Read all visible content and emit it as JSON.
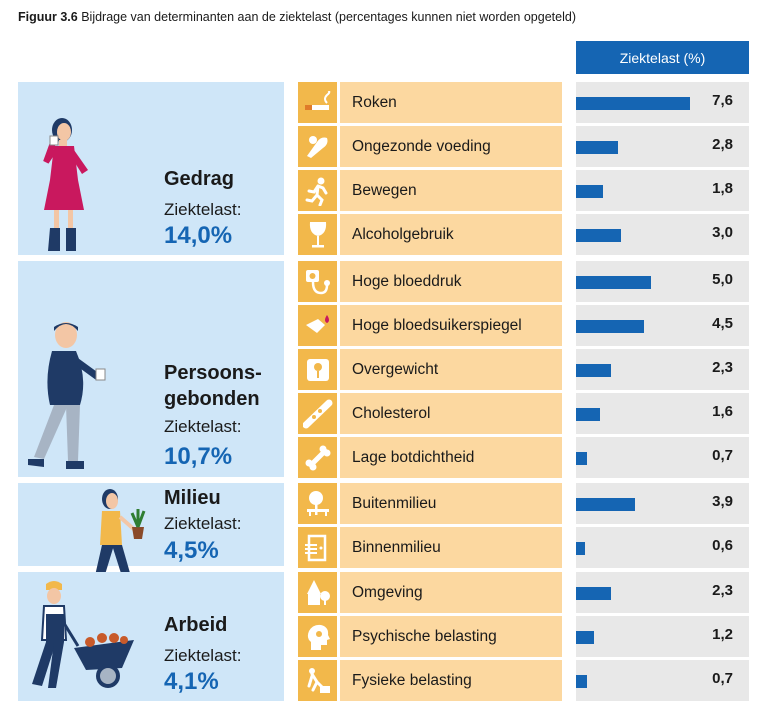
{
  "caption": {
    "prefix": "Figuur 3.6",
    "text": " Bijdrage van determinanten aan de ziektelast (percentages kunnen niet worden opgeteld)"
  },
  "header": {
    "column_label": "Ziektelast (%)"
  },
  "groups": [
    {
      "name_line1": "Gedrag",
      "name_line2": "",
      "label": "Ziektelast:",
      "value": "14,0%"
    },
    {
      "name_line1": "Persoons-",
      "name_line2": "gebonden",
      "label": "Ziektelast:",
      "value": "10,7%"
    },
    {
      "name_line1": "Milieu",
      "name_line2": "",
      "label": "Ziektelast:",
      "value": "4,5%"
    },
    {
      "name_line1": "Arbeid",
      "name_line2": "",
      "label": "Ziektelast:",
      "value": "4,1%"
    }
  ],
  "rows": [
    {
      "label": "Roken",
      "value": 7.6,
      "value_text": "7,6",
      "icon": "cigarette-icon"
    },
    {
      "label": "Ongezonde voeding",
      "value": 2.8,
      "value_text": "2,8",
      "icon": "food-icon"
    },
    {
      "label": "Bewegen",
      "value": 1.8,
      "value_text": "1,8",
      "icon": "running-icon"
    },
    {
      "label": "Alcoholgebruik",
      "value": 3.0,
      "value_text": "3,0",
      "icon": "wine-glass-icon"
    },
    {
      "label": "Hoge bloeddruk",
      "value": 5.0,
      "value_text": "5,0",
      "icon": "blood-pressure-icon"
    },
    {
      "label": "Hoge bloedsuikerspiegel",
      "value": 4.5,
      "value_text": "4,5",
      "icon": "blood-drop-icon"
    },
    {
      "label": "Overgewicht",
      "value": 2.3,
      "value_text": "2,3",
      "icon": "scale-icon"
    },
    {
      "label": "Cholesterol",
      "value": 1.6,
      "value_text": "1,6",
      "icon": "artery-icon"
    },
    {
      "label": "Lage botdichtheid",
      "value": 0.7,
      "value_text": "0,7",
      "icon": "bone-icon"
    },
    {
      "label": "Buitenmilieu",
      "value": 3.9,
      "value_text": "3,9",
      "icon": "tree-bench-icon"
    },
    {
      "label": "Binnenmilieu",
      "value": 0.6,
      "value_text": "0,6",
      "icon": "door-icon"
    },
    {
      "label": "Omgeving",
      "value": 2.3,
      "value_text": "2,3",
      "icon": "house-tree-icon"
    },
    {
      "label": "Psychische belasting",
      "value": 1.2,
      "value_text": "1,2",
      "icon": "head-icon"
    },
    {
      "label": "Fysieke belasting",
      "value": 0.7,
      "value_text": "0,7",
      "icon": "lifting-icon"
    }
  ],
  "colors": {
    "bar": "#1565b3",
    "group_bg": "#cfe6f8",
    "icon_bg": "#f2b84b",
    "label_bg": "#fcd8a0",
    "bar_bg": "#e8e8e8"
  },
  "chart_data": {
    "type": "bar",
    "orientation": "horizontal",
    "categories": [
      "Roken",
      "Ongezonde voeding",
      "Bewegen",
      "Alcoholgebruik",
      "Hoge bloeddruk",
      "Hoge bloedsuikerspiegel",
      "Overgewicht",
      "Cholesterol",
      "Lage botdichtheid",
      "Buitenmilieu",
      "Binnenmilieu",
      "Omgeving",
      "Psychische belasting",
      "Fysieke belasting"
    ],
    "values": [
      7.6,
      2.8,
      1.8,
      3.0,
      5.0,
      4.5,
      2.3,
      1.6,
      0.7,
      3.9,
      0.6,
      2.3,
      1.2,
      0.7
    ],
    "title": "Bijdrage van determinanten aan de ziektelast (percentages kunnen niet worden opgeteld)",
    "xlabel": "Ziektelast (%)",
    "ylabel": "",
    "xlim": [
      0,
      11.5
    ],
    "grid": false,
    "legend": "none"
  }
}
